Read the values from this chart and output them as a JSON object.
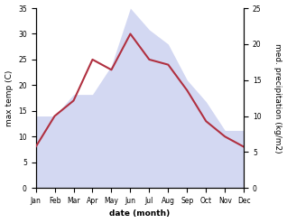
{
  "months": [
    "Jan",
    "Feb",
    "Mar",
    "Apr",
    "May",
    "Jun",
    "Jul",
    "Aug",
    "Sep",
    "Oct",
    "Nov",
    "Dec"
  ],
  "temperature": [
    8,
    14,
    17,
    25,
    23,
    30,
    25,
    24,
    19,
    13,
    10,
    8
  ],
  "precipitation": [
    10,
    10,
    13,
    13,
    17,
    25,
    22,
    20,
    15,
    12,
    8,
    8
  ],
  "temp_color": "#b03040",
  "precip_color": "#b0b8e8",
  "ylabel_left": "max temp (C)",
  "ylabel_right": "med. precipitation (kg/m2)",
  "xlabel": "date (month)",
  "ylim_left": [
    0,
    35
  ],
  "ylim_right": [
    0,
    25
  ],
  "background_color": "#ffffff",
  "temp_linewidth": 1.5,
  "precip_alpha": 0.55,
  "title_fontsize": 7,
  "axis_fontsize": 6.5,
  "tick_fontsize": 5.5
}
